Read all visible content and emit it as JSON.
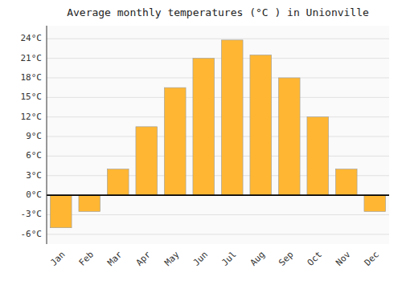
{
  "chart_data": {
    "type": "bar",
    "title": "Average monthly temperatures (°C ) in Unionville",
    "categories": [
      "Jan",
      "Feb",
      "Mar",
      "Apr",
      "May",
      "Jun",
      "Jul",
      "Aug",
      "Sep",
      "Oct",
      "Nov",
      "Dec"
    ],
    "values": [
      -5.0,
      -2.5,
      4.0,
      10.5,
      16.5,
      21.0,
      23.8,
      21.5,
      18.0,
      12.0,
      4.0,
      -2.5
    ],
    "color": "#FFB733",
    "ylim": [
      -7.5,
      26.0
    ],
    "yticks": [
      {
        "value": -6,
        "label": "-6°C"
      },
      {
        "value": -3,
        "label": "-3°C"
      },
      {
        "value": 0,
        "label": "0°C"
      },
      {
        "value": 3,
        "label": "3°C"
      },
      {
        "value": 6,
        "label": "6°C"
      },
      {
        "value": 9,
        "label": "9°C"
      },
      {
        "value": 12,
        "label": "12°C"
      },
      {
        "value": 15,
        "label": "15°C"
      },
      {
        "value": 18,
        "label": "18°C"
      },
      {
        "value": 21,
        "label": "21°C"
      },
      {
        "value": 24,
        "label": "24°C"
      }
    ],
    "grid": true
  }
}
